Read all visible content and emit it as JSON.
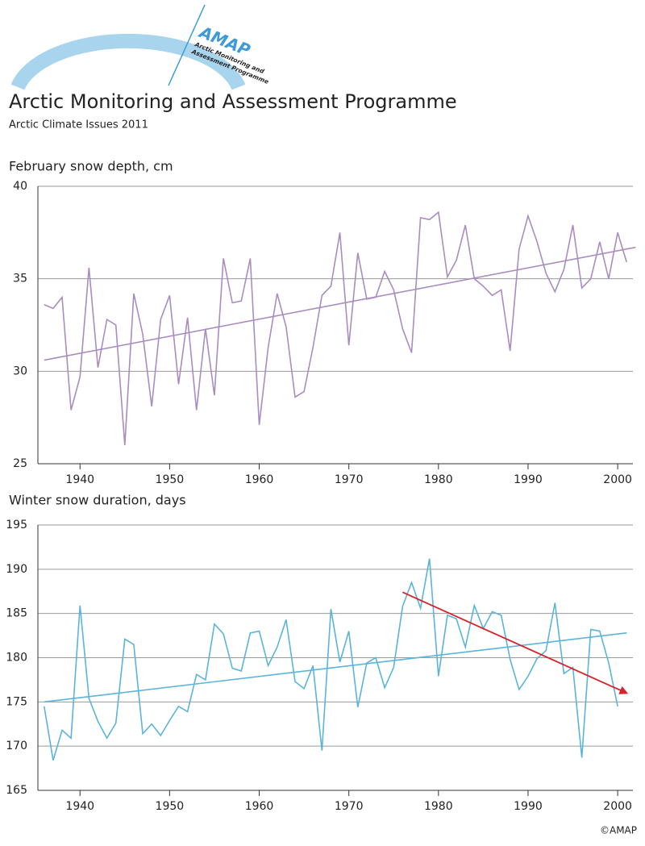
{
  "header": {
    "logo": "AMAP",
    "logo_text": [
      "Arctic Monitoring and",
      "Assessment Programme"
    ],
    "title": "Arctic Monitoring and Assessment Programme",
    "subtitle": "Arctic Climate Issues 2011"
  },
  "credit": "©AMAP",
  "chart_data": [
    {
      "type": "line",
      "title": "February snow depth, cm",
      "color": "#a98dc0",
      "x": [
        1936,
        1937,
        1938,
        1939,
        1940,
        1941,
        1942,
        1943,
        1944,
        1945,
        1946,
        1947,
        1948,
        1949,
        1950,
        1951,
        1952,
        1953,
        1954,
        1955,
        1956,
        1957,
        1958,
        1959,
        1960,
        1961,
        1962,
        1963,
        1964,
        1965,
        1966,
        1967,
        1968,
        1969,
        1970,
        1971,
        1972,
        1973,
        1974,
        1975,
        1976,
        1977,
        1978,
        1979,
        1980,
        1981,
        1982,
        1983,
        1984,
        1985,
        1986,
        1987,
        1988,
        1989,
        1990,
        1991,
        1992,
        1993,
        1994,
        1995,
        1996,
        1997,
        1998,
        1999,
        2000,
        2001
      ],
      "values": [
        33.6,
        33.4,
        34.0,
        27.9,
        29.7,
        35.6,
        30.2,
        32.8,
        32.5,
        26.0,
        34.2,
        32.0,
        28.1,
        32.8,
        34.1,
        29.3,
        32.9,
        27.9,
        32.3,
        28.7,
        36.1,
        33.7,
        33.8,
        36.1,
        27.1,
        31.3,
        34.2,
        32.4,
        28.6,
        28.9,
        31.3,
        34.1,
        34.6,
        37.5,
        31.4,
        36.4,
        33.9,
        34.0,
        35.4,
        34.4,
        32.3,
        31.0,
        38.3,
        38.2,
        38.6,
        35.1,
        36.0,
        37.9,
        35.0,
        34.6,
        34.1,
        34.4,
        31.1,
        36.6,
        38.4,
        37.0,
        35.3,
        34.3,
        35.5,
        37.9,
        34.5,
        35.0,
        37.0,
        35.0,
        37.5,
        35.9
      ],
      "trend": {
        "x": [
          1936,
          2002
        ],
        "values": [
          30.6,
          36.7
        ]
      },
      "xlim": [
        1935.3,
        2001.7
      ],
      "xticks": [
        1940,
        1950,
        1960,
        1970,
        1980,
        1990,
        2000
      ],
      "ylim": [
        25,
        40
      ],
      "yticks": [
        25,
        30,
        35,
        40
      ],
      "grid": true
    },
    {
      "type": "line",
      "title": "Winter snow duration, days",
      "color": "#5ab4dc",
      "x": [
        1936,
        1937,
        1938,
        1939,
        1940,
        1941,
        1942,
        1943,
        1944,
        1945,
        1946,
        1947,
        1948,
        1949,
        1950,
        1951,
        1952,
        1953,
        1954,
        1955,
        1956,
        1957,
        1958,
        1959,
        1960,
        1961,
        1962,
        1963,
        1964,
        1965,
        1966,
        1967,
        1968,
        1969,
        1970,
        1971,
        1972,
        1973,
        1974,
        1975,
        1976,
        1977,
        1978,
        1979,
        1980,
        1981,
        1982,
        1983,
        1984,
        1985,
        1986,
        1987,
        1988,
        1989,
        1990,
        1991,
        1992,
        1993,
        1994,
        1995,
        1996,
        1997,
        1998,
        1999,
        2000
      ],
      "values": [
        174.5,
        168.4,
        171.8,
        170.9,
        185.9,
        175.4,
        172.8,
        170.9,
        172.6,
        182.1,
        181.5,
        171.4,
        172.5,
        171.2,
        172.9,
        174.5,
        173.9,
        178.1,
        177.5,
        183.8,
        182.7,
        178.8,
        178.5,
        182.8,
        183.0,
        179.1,
        181.2,
        184.3,
        177.3,
        176.5,
        179.1,
        169.5,
        185.5,
        179.5,
        183.0,
        174.4,
        179.4,
        180.0,
        176.6,
        178.9,
        185.8,
        188.5,
        185.6,
        191.2,
        177.9,
        184.8,
        184.4,
        181.2,
        185.9,
        183.3,
        185.2,
        184.8,
        179.8,
        176.4,
        177.9,
        179.9,
        180.8,
        186.2,
        178.2,
        178.9,
        168.7,
        183.2,
        183.0,
        179.4,
        174.5
      ],
      "trend": {
        "x": [
          1936,
          2001
        ],
        "values": [
          175.0,
          182.8
        ]
      },
      "arrow": {
        "x": [
          1976,
          2001
        ],
        "values": [
          187.4,
          176.0
        ],
        "color": "#d8232a"
      },
      "xlim": [
        1935.3,
        2001.7
      ],
      "xticks": [
        1940,
        1950,
        1960,
        1970,
        1980,
        1990,
        2000
      ],
      "ylim": [
        165,
        195
      ],
      "yticks": [
        165,
        170,
        175,
        180,
        185,
        190,
        195
      ],
      "grid": true
    }
  ]
}
